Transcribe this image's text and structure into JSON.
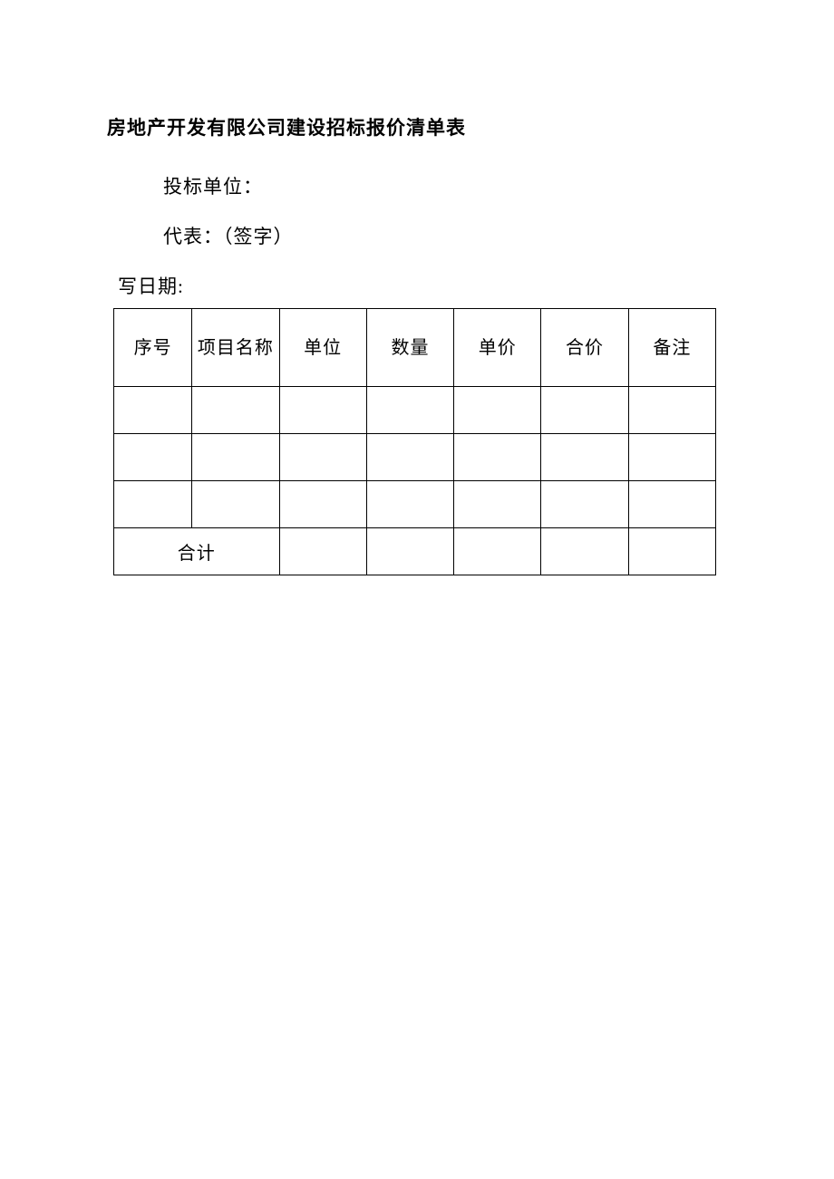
{
  "title": "房地产开发有限公司建设招标报价清单表",
  "meta": {
    "bidder_label": "投标单位：",
    "representative_label": "代表：（签字）",
    "date_label": "写日期:"
  },
  "table": {
    "headers": {
      "seq": "序号",
      "name": "项目名称",
      "unit": "单位",
      "qty": "数量",
      "price": "单价",
      "total": "合价",
      "note": "备注"
    },
    "rows": [
      {
        "seq": "",
        "name": "",
        "unit": "",
        "qty": "",
        "price": "",
        "total": "",
        "note": ""
      },
      {
        "seq": "",
        "name": "",
        "unit": "",
        "qty": "",
        "price": "",
        "total": "",
        "note": ""
      },
      {
        "seq": "",
        "name": "",
        "unit": "",
        "qty": "",
        "price": "",
        "total": "",
        "note": ""
      }
    ],
    "footer": {
      "label": "合计",
      "unit": "",
      "qty": "",
      "price": "",
      "total": "",
      "note": ""
    }
  },
  "styles": {
    "background_color": "#ffffff",
    "text_color": "#000000",
    "border_color": "#000000",
    "title_fontsize": 21,
    "body_fontsize": 20,
    "font_family": "SimSun"
  }
}
